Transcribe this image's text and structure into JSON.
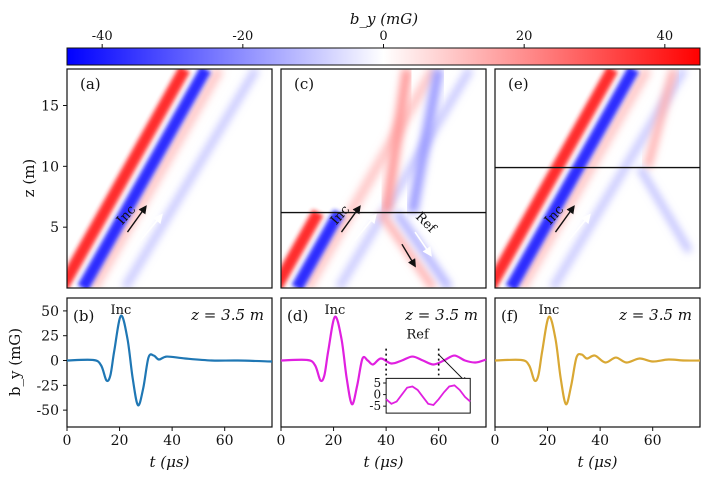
{
  "colorbar": {
    "label": "b_y (mG)",
    "ticks": [
      -40,
      -20,
      0,
      20,
      40
    ],
    "range": [
      -45,
      45
    ],
    "colors": {
      "neg": "#0000ff",
      "mid": "#ffffff",
      "pos": "#ff0000"
    }
  },
  "chart_data": [
    {
      "type": "heatmap",
      "panel": "(a)",
      "title": "",
      "xlabel": "",
      "ylabel": "z (m)",
      "xlim": [
        0,
        78
      ],
      "ylim": [
        0,
        18
      ],
      "yticks": [
        5,
        10,
        15
      ],
      "annotations": [
        "Inc"
      ],
      "boundary_z": null
    },
    {
      "type": "heatmap",
      "panel": "(c)",
      "title": "",
      "xlabel": "",
      "ylabel": "",
      "xlim": [
        0,
        78
      ],
      "ylim": [
        0,
        18
      ],
      "annotations": [
        "Inc",
        "Ref"
      ],
      "boundary_z": 6.2
    },
    {
      "type": "heatmap",
      "panel": "(e)",
      "title": "",
      "xlabel": "",
      "ylabel": "",
      "xlim": [
        0,
        78
      ],
      "ylim": [
        0,
        18
      ],
      "annotations": [
        "Inc"
      ],
      "boundary_z": 9.9
    },
    {
      "type": "line",
      "panel": "(b)",
      "label": "z = 3.5 m",
      "annotation": "Inc",
      "xlabel": "t (μs)",
      "ylabel": "b_y (mG)",
      "xlim": [
        0,
        78
      ],
      "ylim": [
        -67,
        63
      ],
      "xticks": [
        0,
        20,
        40,
        60
      ],
      "yticks": [
        -50,
        -25,
        0,
        25,
        50
      ],
      "color": "#1f77b4",
      "series": [
        {
          "name": "b_y",
          "x": [
            0,
            10,
            13,
            15,
            16.5,
            18,
            20.5,
            23,
            25,
            27,
            29,
            31,
            33,
            35,
            38,
            45,
            55,
            65,
            78
          ],
          "y": [
            0,
            0.5,
            -5,
            -20,
            -15,
            10,
            45,
            22,
            -18,
            -45,
            -28,
            3,
            5,
            1,
            4,
            2,
            0,
            0,
            -1
          ]
        }
      ]
    },
    {
      "type": "line",
      "panel": "(d)",
      "label": "z = 3.5 m",
      "annotations": [
        "Inc",
        "Ref"
      ],
      "xlabel": "t (μs)",
      "ylabel": "",
      "xlim": [
        0,
        78
      ],
      "ylim": [
        -67,
        63
      ],
      "xticks": [
        0,
        20,
        40,
        60
      ],
      "color": "#e020e0",
      "series": [
        {
          "name": "b_y",
          "x": [
            0,
            10,
            13,
            15,
            16.5,
            18,
            20.5,
            23,
            25,
            27,
            29,
            31,
            33,
            35,
            38,
            42,
            46,
            50,
            54,
            58,
            62,
            66,
            70,
            74,
            78
          ],
          "y": [
            0,
            0.5,
            -5,
            -20,
            -15,
            10,
            44,
            22,
            -18,
            -44,
            -25,
            2,
            0,
            -4,
            2,
            -3,
            0,
            4,
            0,
            -4,
            0,
            5,
            0,
            -2,
            1
          ]
        }
      ],
      "inset": {
        "xlim": [
          40,
          72
        ],
        "ylim": [
          -8,
          7
        ],
        "yticks": [
          -5,
          0,
          5
        ],
        "x": [
          40,
          42,
          44,
          46,
          48,
          50,
          52,
          54,
          56,
          58,
          60,
          62,
          64,
          66,
          68,
          70,
          72
        ],
        "y": [
          -2,
          -4,
          -3,
          0,
          3,
          3.5,
          2,
          -1,
          -4,
          -4.5,
          -2,
          1,
          3.5,
          4,
          2,
          -1,
          -3
        ]
      }
    },
    {
      "type": "line",
      "panel": "(f)",
      "label": "z = 3.5 m",
      "annotation": "Inc",
      "xlabel": "t (μs)",
      "ylabel": "",
      "xlim": [
        0,
        78
      ],
      "ylim": [
        -67,
        63
      ],
      "xticks": [
        0,
        20,
        40,
        60
      ],
      "color": "#d9a834",
      "series": [
        {
          "name": "b_y",
          "x": [
            0,
            10,
            13,
            15,
            16.5,
            18,
            20.5,
            23,
            25,
            27,
            29,
            31,
            33,
            35,
            38,
            42,
            46,
            50,
            55,
            60,
            66,
            72,
            78
          ],
          "y": [
            0,
            0.5,
            -5,
            -20,
            -15,
            10,
            44,
            22,
            -18,
            -44,
            -25,
            3,
            6,
            2,
            5,
            -2,
            3,
            -2,
            2,
            -1,
            1,
            0,
            0
          ]
        }
      ]
    }
  ]
}
